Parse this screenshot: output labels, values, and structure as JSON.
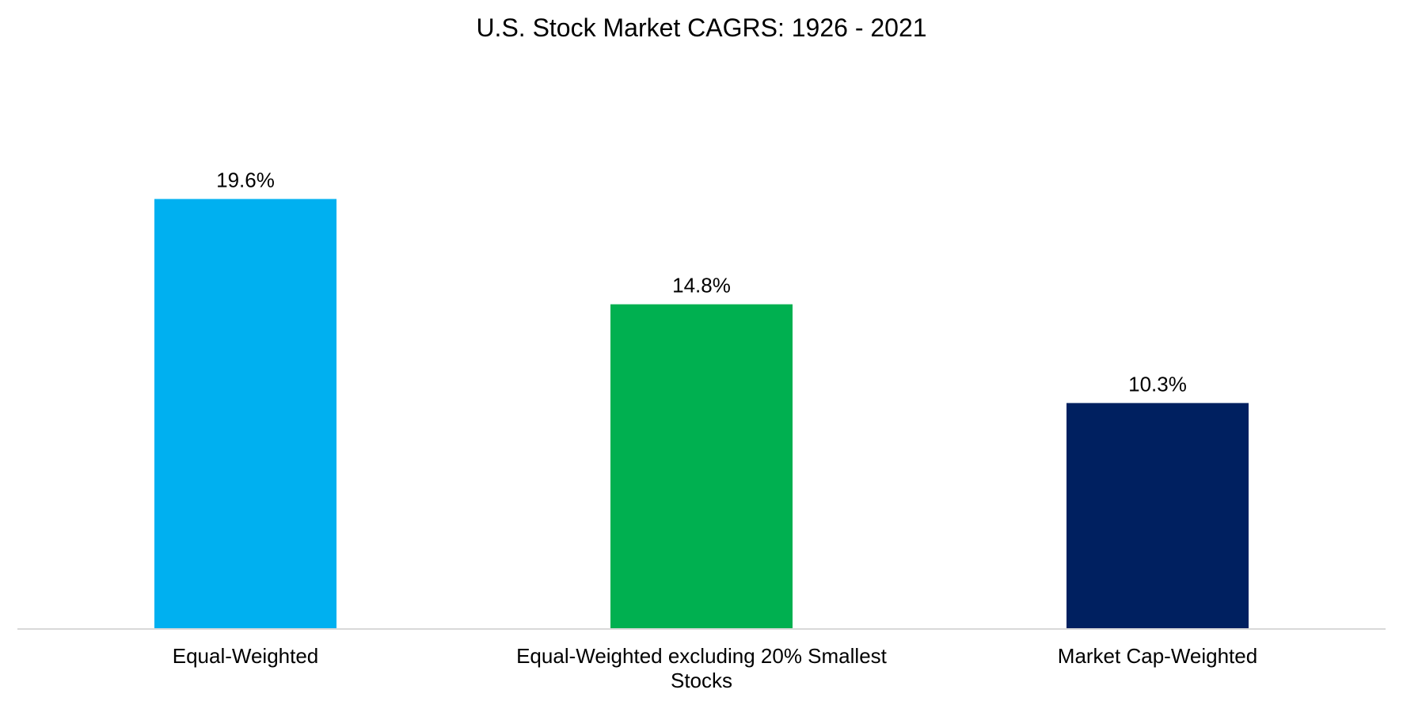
{
  "chart_data": {
    "type": "bar",
    "title": "U.S. Stock Market CAGRS: 1926 - 2021",
    "xlabel": "",
    "ylabel": "",
    "categories": [
      [
        "Equal-Weighted"
      ],
      [
        "Equal-Weighted excluding 20% Smallest",
        "Stocks"
      ],
      [
        "Market Cap-Weighted"
      ]
    ],
    "values": [
      19.6,
      14.8,
      10.3
    ],
    "data_labels": [
      "19.6%",
      "14.8%",
      "10.3%"
    ],
    "colors": [
      "#00B0F0",
      "#00B050",
      "#002060"
    ],
    "ylim": [
      0,
      22
    ],
    "grid": false,
    "legend": "none",
    "y_axis_visible": false
  }
}
